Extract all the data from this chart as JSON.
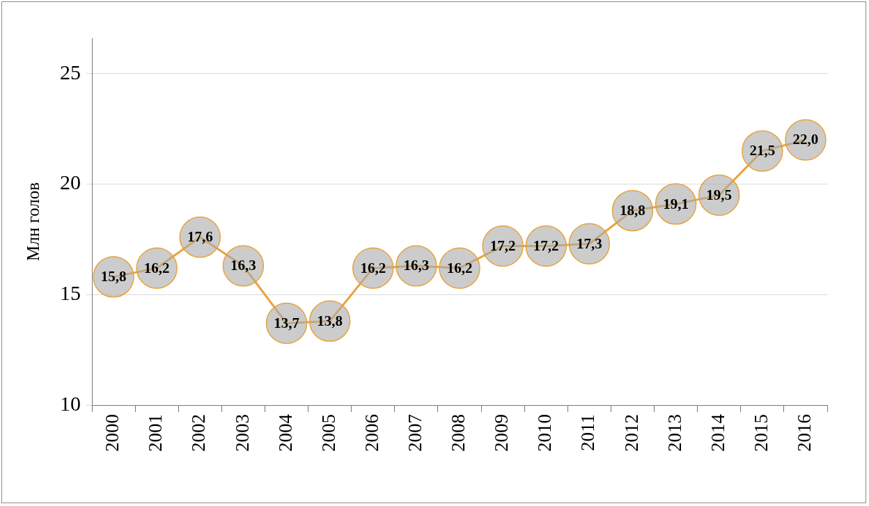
{
  "chart_data": {
    "type": "line",
    "ylabel": "Млн голов",
    "categories": [
      "2000",
      "2001",
      "2002",
      "2003",
      "2004",
      "2005",
      "2006",
      "2007",
      "2008",
      "2009",
      "2010",
      "2011",
      "2012",
      "2013",
      "2014",
      "2015",
      "2016"
    ],
    "values": [
      15.8,
      16.2,
      17.6,
      16.3,
      13.7,
      13.8,
      16.2,
      16.3,
      16.2,
      17.2,
      17.2,
      17.3,
      18.8,
      19.1,
      19.5,
      21.5,
      22.0
    ],
    "value_labels": [
      "15,8",
      "16,2",
      "17,6",
      "16,3",
      "13,7",
      "13,8",
      "16,2",
      "16,3",
      "16,2",
      "17,2",
      "17,2",
      "17,3",
      "18,8",
      "19,1",
      "19,5",
      "21,5",
      "22,0"
    ],
    "color": "#e8a33c",
    "line_style": "solid",
    "ylim": [
      10,
      26.6
    ],
    "yticks": [
      10,
      15,
      20,
      25
    ],
    "grid": "y",
    "legend": false
  }
}
